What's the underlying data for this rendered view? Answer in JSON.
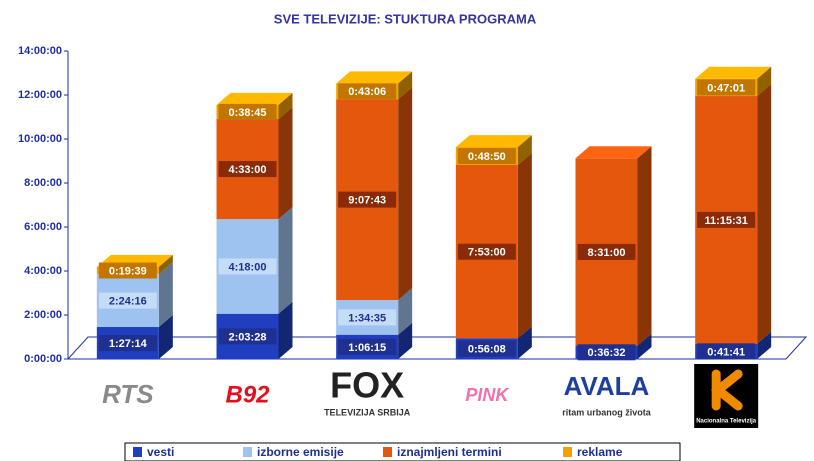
{
  "chart_data": {
    "type": "stacked_bar_3d",
    "title": "SVE TELEVIZIJE: STUKTURA PROGRAMA",
    "categories": [
      "RTS",
      "B92",
      "FOX",
      "PINK",
      "AVALA",
      "Nacionalna Televizija"
    ],
    "category_subtitles": [
      null,
      null,
      "TELEVIZIJA SRBIJA",
      null,
      "ritam urbanog života",
      null
    ],
    "series": [
      {
        "name": "vesti",
        "color": "#1f3fc0",
        "values": [
          5234,
          7408,
          3975,
          3368,
          2192,
          2501
        ],
        "value_labels": [
          "1:27:14",
          "2:03:28",
          "1:06:15",
          "0:56:08",
          "0:36:32",
          "0:41:41"
        ]
      },
      {
        "name": "izborne emisije",
        "color": "#9ec3f0",
        "values": [
          8656,
          15480,
          5675,
          null,
          null,
          null
        ],
        "value_labels": [
          "2:24:16",
          "4:18:00",
          "1:34:35",
          null,
          null,
          null
        ]
      },
      {
        "name": "iznajmljeni termini",
        "color": "#e4580e",
        "values": [
          null,
          16380,
          32863,
          28380,
          30660,
          40531
        ],
        "value_labels": [
          null,
          "4:33:00",
          "9:07:43",
          "7:53:00",
          "8:31:00",
          "11:15:31"
        ]
      },
      {
        "name": "reklame",
        "color": "#f2a200",
        "values": [
          1179,
          2325,
          2586,
          2930,
          null,
          2821
        ],
        "value_labels": [
          "0:19:39",
          "0:38:45",
          "0:43:06",
          "0:48:50",
          null,
          "0:47:01"
        ]
      }
    ],
    "ylim": [
      0,
      50400
    ],
    "yticks": [
      {
        "value": 0,
        "label": "0:00:00"
      },
      {
        "value": 7200,
        "label": "2:00:00"
      },
      {
        "value": 14400,
        "label": "4:00:00"
      },
      {
        "value": 21600,
        "label": "6:00:00"
      },
      {
        "value": 28800,
        "label": "8:00:00"
      },
      {
        "value": 36000,
        "label": "10:00:00"
      },
      {
        "value": 43200,
        "label": "12:00:00"
      },
      {
        "value": 50400,
        "label": "14:00:00"
      }
    ],
    "legend": "bottom"
  }
}
